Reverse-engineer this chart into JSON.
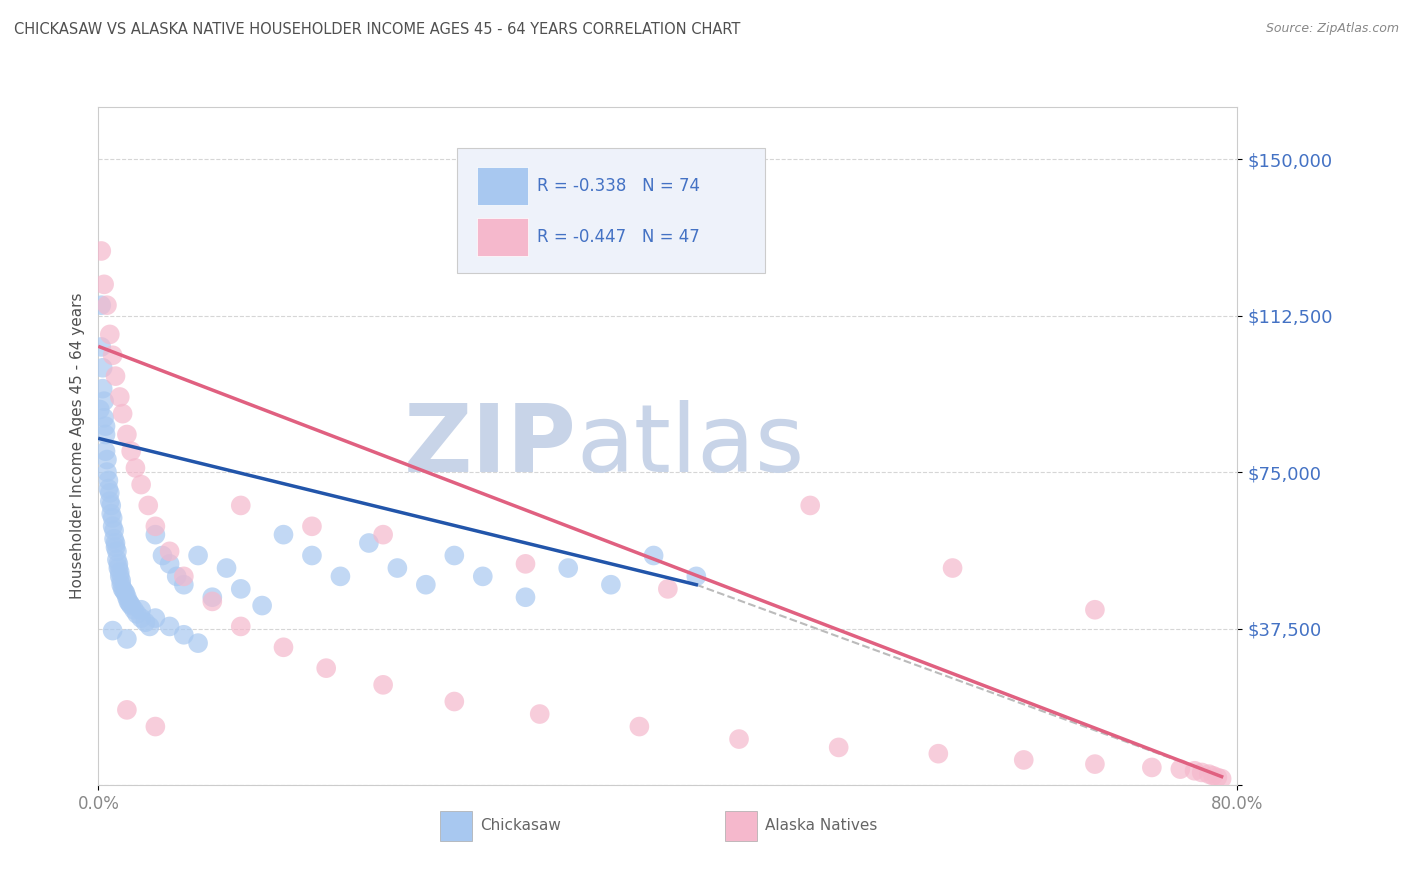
{
  "title": "CHICKASAW VS ALASKA NATIVE HOUSEHOLDER INCOME AGES 45 - 64 YEARS CORRELATION CHART",
  "source": "Source: ZipAtlas.com",
  "ylabel": "Householder Income Ages 45 - 64 years",
  "xlim": [
    0.0,
    0.8
  ],
  "ylim": [
    0,
    162500
  ],
  "yticks": [
    0,
    37500,
    75000,
    112500,
    150000
  ],
  "ytick_labels": [
    "",
    "$37,500",
    "$75,000",
    "$112,500",
    "$150,000"
  ],
  "xticks": [
    0.0,
    0.8
  ],
  "xtick_labels": [
    "0.0%",
    "80.0%"
  ],
  "legend_r1": "R = -0.338   N = 74",
  "legend_r2": "R = -0.447   N = 47",
  "chickasaw_color": "#a8c8f0",
  "alaska_color": "#f5b8cc",
  "chickasaw_line_color": "#2255aa",
  "alaska_line_color": "#e06080",
  "dashed_line_color": "#bbbbbb",
  "watermark_bold": "ZIP",
  "watermark_light": "atlas",
  "watermark_color": "#c8d4e8",
  "title_color": "#505050",
  "axis_color": "#cccccc",
  "right_label_color": "#4472c4",
  "legend_bg": "#eef2fa",
  "legend_border": "#cccccc",
  "chickasaw_scatter_x": [
    0.001,
    0.002,
    0.002,
    0.003,
    0.003,
    0.004,
    0.004,
    0.005,
    0.005,
    0.005,
    0.006,
    0.006,
    0.007,
    0.007,
    0.008,
    0.008,
    0.009,
    0.009,
    0.01,
    0.01,
    0.011,
    0.011,
    0.012,
    0.012,
    0.013,
    0.013,
    0.014,
    0.014,
    0.015,
    0.015,
    0.016,
    0.016,
    0.017,
    0.018,
    0.019,
    0.02,
    0.021,
    0.022,
    0.023,
    0.025,
    0.027,
    0.03,
    0.033,
    0.036,
    0.04,
    0.045,
    0.05,
    0.055,
    0.06,
    0.07,
    0.08,
    0.09,
    0.1,
    0.115,
    0.13,
    0.15,
    0.17,
    0.19,
    0.21,
    0.23,
    0.25,
    0.27,
    0.3,
    0.33,
    0.36,
    0.39,
    0.42,
    0.01,
    0.02,
    0.03,
    0.04,
    0.05,
    0.06,
    0.07
  ],
  "chickasaw_scatter_y": [
    90000,
    115000,
    105000,
    100000,
    95000,
    92000,
    88000,
    86000,
    84000,
    80000,
    78000,
    75000,
    73000,
    71000,
    70000,
    68000,
    67000,
    65000,
    64000,
    62000,
    61000,
    59000,
    58000,
    57000,
    56000,
    54000,
    53000,
    52000,
    51000,
    50000,
    49000,
    48000,
    47000,
    46500,
    46000,
    45000,
    44000,
    43500,
    43000,
    42000,
    41000,
    40000,
    39000,
    38000,
    60000,
    55000,
    53000,
    50000,
    48000,
    55000,
    45000,
    52000,
    47000,
    43000,
    60000,
    55000,
    50000,
    58000,
    52000,
    48000,
    55000,
    50000,
    45000,
    52000,
    48000,
    55000,
    50000,
    37000,
    35000,
    42000,
    40000,
    38000,
    36000,
    34000
  ],
  "alaska_scatter_x": [
    0.002,
    0.004,
    0.006,
    0.008,
    0.01,
    0.012,
    0.015,
    0.017,
    0.02,
    0.023,
    0.026,
    0.03,
    0.035,
    0.04,
    0.05,
    0.06,
    0.08,
    0.1,
    0.13,
    0.16,
    0.2,
    0.25,
    0.31,
    0.38,
    0.45,
    0.52,
    0.59,
    0.65,
    0.7,
    0.74,
    0.76,
    0.77,
    0.775,
    0.78,
    0.783,
    0.786,
    0.789,
    0.1,
    0.15,
    0.2,
    0.3,
    0.4,
    0.5,
    0.6,
    0.7,
    0.02,
    0.04
  ],
  "alaska_scatter_y": [
    128000,
    120000,
    115000,
    108000,
    103000,
    98000,
    93000,
    89000,
    84000,
    80000,
    76000,
    72000,
    67000,
    62000,
    56000,
    50000,
    44000,
    38000,
    33000,
    28000,
    24000,
    20000,
    17000,
    14000,
    11000,
    9000,
    7500,
    6000,
    5000,
    4200,
    3800,
    3400,
    3000,
    2600,
    2200,
    1800,
    1500,
    67000,
    62000,
    60000,
    53000,
    47000,
    67000,
    52000,
    42000,
    18000,
    14000
  ],
  "chickasaw_trend_x": [
    0.001,
    0.42
  ],
  "chickasaw_trend_y": [
    83000,
    48000
  ],
  "alaska_trend_x": [
    0.001,
    0.789
  ],
  "alaska_trend_y": [
    105000,
    2000
  ],
  "dashed_trend_x": [
    0.42,
    0.789
  ],
  "dashed_trend_y": [
    48000,
    2000
  ]
}
